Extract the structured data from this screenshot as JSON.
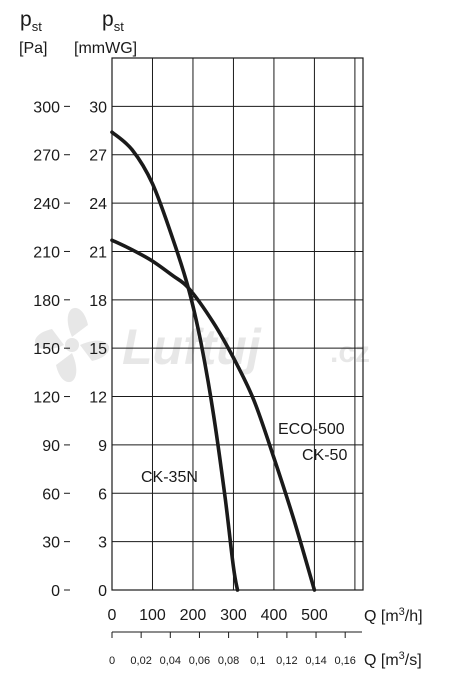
{
  "chart_data": {
    "type": "line",
    "y_left": {
      "symbol": "p",
      "subscript": "st",
      "unit": "[Pa]",
      "ticks": [
        0,
        30,
        60,
        90,
        120,
        150,
        180,
        210,
        240,
        270,
        300
      ]
    },
    "y_right": {
      "symbol": "p",
      "subscript": "st",
      "unit": "[mmWG]",
      "ticks": [
        0,
        3,
        6,
        9,
        12,
        15,
        18,
        21,
        24,
        27,
        30
      ],
      "ylim": [
        0,
        33
      ]
    },
    "x_primary": {
      "label": "Q [m",
      "sup": "3",
      "label_tail": "/h]",
      "ticks": [
        0,
        100,
        200,
        300,
        400,
        500
      ],
      "xlim": [
        0,
        620
      ]
    },
    "x_secondary": {
      "label": "Q [m",
      "sup": "3",
      "label_tail": "/s]",
      "ticks": [
        "0",
        "0,02",
        "0,04",
        "0,06",
        "0,08",
        "0,1",
        "0,12",
        "0,14",
        "0,16"
      ]
    },
    "grid": true,
    "series": [
      {
        "name": "CK-35N",
        "x": [
          0,
          50,
          100,
          150,
          190,
          220,
          250,
          280,
          300,
          310
        ],
        "y": [
          28.4,
          27.3,
          25.2,
          21.8,
          18.6,
          15.3,
          11.0,
          5.6,
          1.4,
          0.0
        ]
      },
      {
        "name": "ECO-500",
        "name2": "CK-50",
        "x": [
          0,
          50,
          100,
          150,
          190,
          250,
          300,
          350,
          400,
          450,
          500
        ],
        "y": [
          21.7,
          21.1,
          20.4,
          19.5,
          18.7,
          16.6,
          14.4,
          11.8,
          8.2,
          4.3,
          0.0
        ]
      }
    ],
    "watermark": "Luftuj.cz"
  }
}
